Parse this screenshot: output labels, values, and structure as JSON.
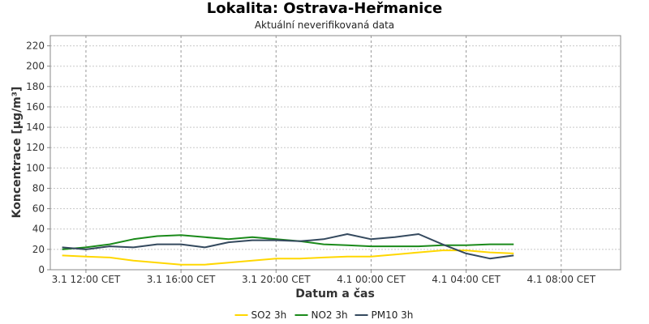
{
  "chart_data": {
    "type": "line",
    "title": "Lokalita: Ostrava-Heřmanice",
    "subtitle": "Aktuální neverifikovaná data",
    "xlabel": "Datum a čas",
    "ylabel": "Koncentrace [µg/m³]",
    "ylim": [
      0,
      230
    ],
    "yticks": [
      0,
      20,
      40,
      60,
      80,
      100,
      120,
      140,
      160,
      180,
      200,
      220
    ],
    "xlim": [
      10.5,
      34.5
    ],
    "xticks": [
      {
        "value": 12,
        "label": "3.1 12:00 CET"
      },
      {
        "value": 16,
        "label": "3.1 16:00 CET"
      },
      {
        "value": 20,
        "label": "3.1 20:00 CET"
      },
      {
        "value": 24,
        "label": "4.1 00:00 CET"
      },
      {
        "value": 28,
        "label": "4.1 04:00 CET"
      },
      {
        "value": 32,
        "label": "4.1 08:00 CET"
      }
    ],
    "grid": true,
    "legend_position": "bottom",
    "x": [
      11,
      12,
      13,
      14,
      15,
      16,
      17,
      18,
      19,
      20,
      21,
      22,
      23,
      24,
      25,
      26,
      27,
      28,
      29,
      30
    ],
    "series": [
      {
        "name": "SO2 3h",
        "color": "#ffd700",
        "values": [
          14,
          13,
          12,
          9,
          7,
          5,
          5,
          7,
          9,
          11,
          11,
          12,
          13,
          13,
          15,
          17,
          19,
          19,
          17,
          16
        ]
      },
      {
        "name": "NO2 3h",
        "color": "#1a8a1a",
        "values": [
          20,
          22,
          25,
          30,
          33,
          34,
          32,
          30,
          32,
          30,
          28,
          25,
          24,
          23,
          23,
          23,
          24,
          24,
          25,
          25
        ]
      },
      {
        "name": "PM10 3h",
        "color": "#34495e",
        "values": [
          22,
          20,
          23,
          22,
          25,
          25,
          22,
          27,
          29,
          29,
          28,
          30,
          35,
          30,
          32,
          35,
          25,
          16,
          11,
          14
        ]
      }
    ]
  }
}
